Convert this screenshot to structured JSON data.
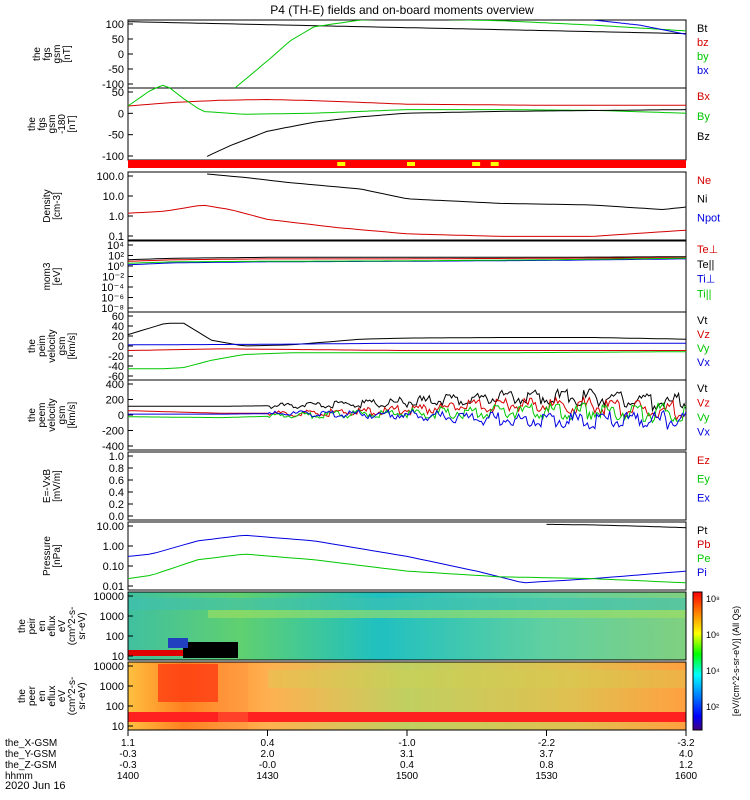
{
  "title": "P4 (TH-E) fields and on-board moments overview",
  "date": "2020 Jun 16",
  "colors": {
    "black": "#000000",
    "red": "#d40000",
    "green": "#00c800",
    "blue": "#0000e0",
    "yellow": "#ffff00",
    "spec_red": "#ff0000"
  },
  "panels": [
    {
      "key": "fgs",
      "ylabel": [
        "the",
        "fgs",
        "gsm",
        "[nT]"
      ],
      "yticks": [
        "100",
        "50",
        "0",
        "-50",
        "-100"
      ],
      "legend": [
        {
          "text": "Bt",
          "color": "black"
        },
        {
          "text": "bz",
          "color": "red"
        },
        {
          "text": "by",
          "color": "green"
        },
        {
          "text": "bx",
          "color": "blue"
        }
      ]
    },
    {
      "key": "fgs180",
      "ylabel": [
        "the",
        "fgs",
        "gsm",
        "-180",
        "[nT]"
      ],
      "yticks": [
        "50",
        "0",
        "-50",
        "-100"
      ],
      "legend": [
        {
          "text": "Bx",
          "color": "red"
        },
        {
          "text": "By",
          "color": "green"
        },
        {
          "text": "Bz",
          "color": "black"
        }
      ]
    },
    {
      "key": "mode",
      "ylabel": [],
      "yticks": [],
      "legend": []
    },
    {
      "key": "density",
      "ylabel": [
        "Density",
        "[cm-3]"
      ],
      "yticks": [
        "100.0",
        "10.0",
        "1.0",
        "0.1"
      ],
      "legend": [
        {
          "text": "Ne",
          "color": "red"
        },
        {
          "text": "Ni",
          "color": "black"
        },
        {
          "text": "Npot",
          "color": "blue"
        }
      ]
    },
    {
      "key": "temp",
      "ylabel": [
        "mom3",
        "[eV]"
      ],
      "yticks": [
        "10⁴",
        "10²",
        "10⁰",
        "10⁻²",
        "10⁻⁴",
        "10⁻⁶",
        "10⁻⁸"
      ],
      "legend": [
        {
          "text": "Te⊥",
          "color": "red"
        },
        {
          "text": "Te||",
          "color": "black"
        },
        {
          "text": "Ti⊥",
          "color": "blue"
        },
        {
          "text": "Ti||",
          "color": "green"
        }
      ]
    },
    {
      "key": "peirv",
      "ylabel": [
        "the",
        "peim",
        "velocity",
        "gsm",
        "[km/s]"
      ],
      "yticks": [
        "60",
        "40",
        "20",
        "0",
        "-20",
        "-40",
        "-60"
      ],
      "legend": [
        {
          "text": "Vt",
          "color": "black"
        },
        {
          "text": "Vz",
          "color": "red"
        },
        {
          "text": "Vy",
          "color": "green"
        },
        {
          "text": "Vx",
          "color": "blue"
        }
      ]
    },
    {
      "key": "peerv",
      "ylabel": [
        "the",
        "peem",
        "velocity",
        "gsm",
        "[km/s]"
      ],
      "yticks": [
        "400",
        "200",
        "0",
        "-200",
        "-400"
      ],
      "legend": [
        {
          "text": "Vt",
          "color": "black"
        },
        {
          "text": "Vz",
          "color": "red"
        },
        {
          "text": "Vy",
          "color": "green"
        },
        {
          "text": "Vx",
          "color": "blue"
        }
      ]
    },
    {
      "key": "efield",
      "ylabel": [
        "E=-VxB",
        "[mV/m]"
      ],
      "yticks": [
        "1.0",
        "0.8",
        "0.6",
        "0.4",
        "0.2",
        "0.0"
      ],
      "legend": [
        {
          "text": "Ez",
          "color": "red"
        },
        {
          "text": "Ey",
          "color": "green"
        },
        {
          "text": "Ex",
          "color": "blue"
        }
      ]
    },
    {
      "key": "pressure",
      "ylabel": [
        "Pressure",
        "[nPa]"
      ],
      "yticks": [
        "10.00",
        "1.00",
        "0.10",
        "0.01"
      ],
      "legend": [
        {
          "text": "Pt",
          "color": "black"
        },
        {
          "text": "Pb",
          "color": "red"
        },
        {
          "text": "Pe",
          "color": "green"
        },
        {
          "text": "Pi",
          "color": "blue"
        }
      ]
    },
    {
      "key": "peir",
      "ylabel": [
        "the",
        "peir",
        "en",
        "eflux",
        "eV",
        "(cm^2-s-",
        "sr-eV)"
      ],
      "yticks": [
        "10000",
        "1000",
        "100",
        "10"
      ],
      "legend": []
    },
    {
      "key": "peer",
      "ylabel": [
        "the",
        "peer",
        "en",
        "eflux",
        "eV",
        "(cm^2-s-",
        "sr-eV)"
      ],
      "yticks": [
        "10000",
        "1000",
        "100",
        "10"
      ],
      "legend": []
    }
  ],
  "colorbar": {
    "ticks": [
      "10⁸",
      "10⁶",
      "10⁴",
      "10²"
    ],
    "label": "[eV/(cm^2-s-sr-eV)] (All Qs)"
  },
  "xaxis": {
    "rows": [
      {
        "label": "the_X-GSM",
        "values": [
          "1.1",
          "0.4",
          "-1.0",
          "-2.2",
          "-3.2"
        ]
      },
      {
        "label": "the_Y-GSM",
        "values": [
          "-0.3",
          "2.0",
          "3.1",
          "3.7",
          "4.0"
        ]
      },
      {
        "label": "the_Z-GSM",
        "values": [
          "-0.3",
          "-0.0",
          "0.4",
          "0.8",
          "1.2"
        ]
      },
      {
        "label": "hhmm",
        "values": [
          "1400",
          "1430",
          "1500",
          "1530",
          "1600"
        ]
      }
    ]
  },
  "chart_data": {
    "type": "line",
    "title": "P4 (TH-E) fields and on-board moments overview",
    "x": {
      "label": "hhmm",
      "ticks": [
        "1400",
        "1430",
        "1500",
        "1530",
        "1600"
      ],
      "range": [
        0,
        120
      ]
    },
    "series": [
      {
        "panel": "fgs",
        "name": "Bt",
        "x": [
          0,
          120
        ],
        "y": [
          95,
          60
        ]
      },
      {
        "panel": "fgs",
        "name": "by",
        "x": [
          23,
          30,
          35,
          40,
          50,
          60,
          80,
          100,
          120
        ],
        "y": [
          -100,
          -20,
          40,
          80,
          100,
          104,
          98,
          85,
          68
        ]
      },
      {
        "panel": "fgs",
        "name": "bx",
        "x": [
          100,
          110,
          120
        ],
        "y": [
          100,
          85,
          58
        ]
      },
      {
        "panel": "fgs180",
        "name": "Bx",
        "x": [
          0,
          10,
          20,
          30,
          40,
          60,
          90,
          120
        ],
        "y": [
          20,
          30,
          36,
          38,
          35,
          25,
          22,
          22
        ]
      },
      {
        "panel": "fgs180",
        "name": "By",
        "x": [
          0,
          5,
          8,
          12,
          16,
          25,
          40,
          60,
          80,
          100,
          120
        ],
        "y": [
          20,
          65,
          80,
          40,
          5,
          -3,
          0,
          10,
          10,
          8,
          0
        ]
      },
      {
        "panel": "fgs180",
        "name": "Bz",
        "x": [
          17,
          22,
          30,
          40,
          50,
          60,
          80,
          120
        ],
        "y": [
          -120,
          -90,
          -50,
          -25,
          -10,
          0,
          5,
          10
        ]
      },
      {
        "panel": "density",
        "name": "Ni",
        "x": [
          17,
          25,
          35,
          50,
          60,
          80,
          100,
          115,
          120
        ],
        "y": [
          160,
          110,
          60,
          30,
          10,
          6,
          5,
          3,
          4
        ]
      },
      {
        "panel": "density",
        "name": "Ne",
        "x": [
          0,
          8,
          16,
          22,
          30,
          45,
          60,
          80,
          100,
          120
        ],
        "y": [
          2,
          2.5,
          5,
          3,
          1,
          0.4,
          0.2,
          0.15,
          0.15,
          0.3
        ]
      },
      {
        "panel": "temp",
        "name": "Te||",
        "x": [
          0,
          10,
          30,
          60,
          90,
          120
        ],
        "y": [
          20,
          40,
          60,
          60,
          60,
          80
        ]
      },
      {
        "panel": "temp",
        "name": "Te⊥",
        "x": [
          0,
          10,
          30,
          60,
          90,
          120
        ],
        "y": [
          10,
          20,
          30,
          30,
          40,
          50
        ]
      },
      {
        "panel": "temp",
        "name": "Ti⊥",
        "x": [
          0,
          10,
          30,
          60,
          90,
          120
        ],
        "y": [
          2,
          5,
          8,
          10,
          15,
          30
        ]
      },
      {
        "panel": "temp",
        "name": "Ti||",
        "x": [
          0,
          10,
          30,
          60,
          90,
          120
        ],
        "y": [
          4,
          8,
          10,
          12,
          20,
          40
        ]
      },
      {
        "panel": "peirv",
        "name": "Vt",
        "x": [
          0,
          8,
          12,
          18,
          25,
          35,
          50,
          60,
          80,
          100,
          120
        ],
        "y": [
          20,
          40,
          40,
          10,
          0,
          2,
          12,
          14,
          15,
          15,
          12
        ]
      },
      {
        "panel": "peirv",
        "name": "Vz",
        "x": [
          0,
          20,
          60,
          120
        ],
        "y": [
          -8,
          -5,
          -8,
          -8
        ]
      },
      {
        "panel": "peirv",
        "name": "Vy",
        "x": [
          0,
          8,
          12,
          18,
          25,
          35,
          50,
          80,
          120
        ],
        "y": [
          -40,
          -40,
          -38,
          -25,
          -15,
          -12,
          -12,
          -12,
          -10
        ]
      },
      {
        "panel": "peirv",
        "name": "Vx",
        "x": [
          0,
          30,
          60,
          90,
          120
        ],
        "y": [
          2,
          3,
          5,
          5,
          5
        ]
      },
      {
        "panel": "peerv",
        "name": "Vt",
        "x": [
          0,
          20,
          40,
          60,
          80,
          100,
          120
        ],
        "y": [
          100,
          100,
          110,
          150,
          200,
          200,
          130
        ]
      },
      {
        "panel": "peerv",
        "name": "Vz",
        "x": [
          0,
          20,
          40,
          60,
          80,
          100,
          120
        ],
        "y": [
          50,
          20,
          20,
          60,
          120,
          100,
          40
        ]
      },
      {
        "panel": "peerv",
        "name": "Vy",
        "x": [
          0,
          20,
          40,
          60,
          80,
          100,
          120
        ],
        "y": [
          -20,
          -30,
          0,
          20,
          40,
          40,
          20
        ]
      },
      {
        "panel": "peerv",
        "name": "Vx",
        "x": [
          0,
          20,
          40,
          60,
          80,
          100,
          120
        ],
        "y": [
          10,
          10,
          20,
          0,
          -50,
          -60,
          -60
        ]
      },
      {
        "panel": "pressure",
        "name": "Pi",
        "x": [
          0,
          5,
          15,
          25,
          40,
          60,
          75,
          85,
          100,
          120
        ],
        "y": [
          0.3,
          0.4,
          2,
          4,
          2,
          0.3,
          0.05,
          0.012,
          0.02,
          0.05
        ]
      },
      {
        "panel": "pressure",
        "name": "Pe",
        "x": [
          0,
          5,
          15,
          25,
          40,
          60,
          80,
          100,
          120
        ],
        "y": [
          0.02,
          0.03,
          0.2,
          0.4,
          0.2,
          0.05,
          0.025,
          0.02,
          0.012
        ]
      },
      {
        "panel": "pressure",
        "name": "Pt",
        "x": [
          90,
          100,
          110,
          120
        ],
        "y": [
          15,
          14,
          12,
          10
        ]
      }
    ],
    "mode_bar": {
      "base": "red",
      "marks": [
        {
          "x": 45,
          "color": "yellow"
        },
        {
          "x": 60,
          "color": "yellow"
        },
        {
          "x": 74,
          "color": "yellow"
        },
        {
          "x": 78,
          "color": "yellow"
        }
      ]
    }
  }
}
